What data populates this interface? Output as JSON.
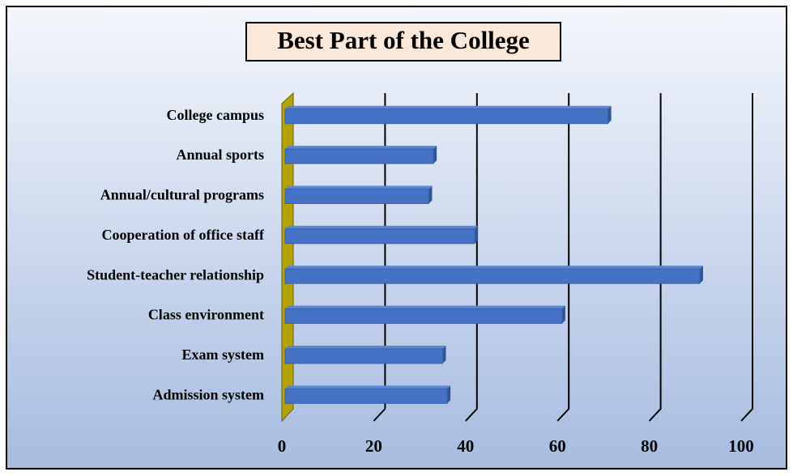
{
  "chart_data": {
    "type": "bar",
    "orientation": "horizontal",
    "title": "Best Part of the College",
    "categories": [
      "College campus",
      "Annual sports",
      "Annual/cultural programs",
      "Cooperation of office staff",
      "Student-teacher relationship",
      "Class environment",
      "Exam system",
      "Admission system"
    ],
    "values": [
      71,
      33,
      32,
      42,
      91,
      61,
      35,
      36
    ],
    "color": "#4472c4",
    "xlim": [
      0,
      100
    ],
    "xticks": [
      0,
      20,
      40,
      60,
      80,
      100
    ],
    "grid": true
  }
}
